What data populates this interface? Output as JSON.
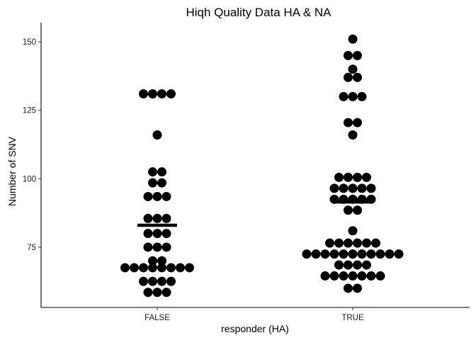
{
  "chart_data": {
    "type": "dotplot",
    "title": "Hiqh Quality Data HA & NA",
    "xlabel": "responder (HA)",
    "ylabel": "Number of SNV",
    "categories": [
      "FALSE",
      "TRUE"
    ],
    "ylim": [
      53,
      157
    ],
    "yticks": [
      75,
      100,
      125,
      150
    ],
    "grid": false,
    "legend": "none",
    "point_color": "#000000",
    "bins": [
      {
        "category": "FALSE",
        "mean": 83,
        "groups": [
          {
            "y": 131,
            "count": 4
          },
          {
            "y": 116,
            "count": 1
          },
          {
            "y": 102.5,
            "count": 2
          },
          {
            "y": 98.5,
            "count": 2
          },
          {
            "y": 93.5,
            "count": 3
          },
          {
            "y": 85.5,
            "count": 3
          },
          {
            "y": 80,
            "count": 3
          },
          {
            "y": 75,
            "count": 3
          },
          {
            "y": 70,
            "count": 2
          },
          {
            "y": 67.5,
            "count": 8
          },
          {
            "y": 62.5,
            "count": 4
          },
          {
            "y": 58.5,
            "count": 3
          }
        ]
      },
      {
        "category": "TRUE",
        "mean": 91.5,
        "groups": [
          {
            "y": 151,
            "count": 1
          },
          {
            "y": 145,
            "count": 2
          },
          {
            "y": 140,
            "count": 1
          },
          {
            "y": 137,
            "count": 2
          },
          {
            "y": 130,
            "count": 3
          },
          {
            "y": 120.5,
            "count": 2
          },
          {
            "y": 116,
            "count": 1
          },
          {
            "y": 100.5,
            "count": 4
          },
          {
            "y": 96.5,
            "count": 5
          },
          {
            "y": 92.5,
            "count": 5
          },
          {
            "y": 88.5,
            "count": 2
          },
          {
            "y": 81,
            "count": 1
          },
          {
            "y": 76.5,
            "count": 6
          },
          {
            "y": 72.5,
            "count": 11
          },
          {
            "y": 68.5,
            "count": 4
          },
          {
            "y": 64.5,
            "count": 7
          },
          {
            "y": 60,
            "count": 2
          }
        ]
      }
    ]
  }
}
